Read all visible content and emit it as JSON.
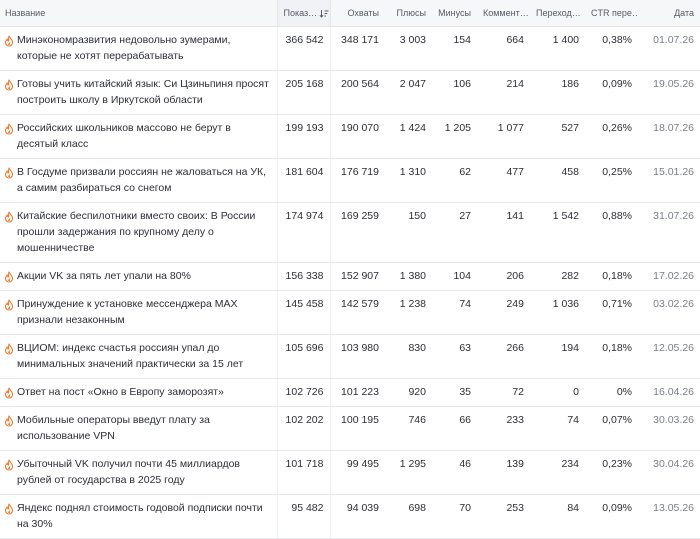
{
  "table": {
    "columns": [
      "Название",
      "Показ…",
      "Охваты",
      "Плюсы",
      "Минусы",
      "Коммент…",
      "Переход…",
      "CTR пере…",
      "Дата"
    ],
    "rows": [
      [
        "Минэкономразвития недовольно зумерами, которые не хотят перерабатывать",
        "366 542",
        "348 171",
        "3 003",
        "154",
        "664",
        "1 400",
        "0,38%",
        "01.07.26"
      ],
      [
        "Готовы учить китайский язык: Си Цзиньпиня просят построить школу в Иркутской области",
        "205 168",
        "200 564",
        "2 047",
        "106",
        "214",
        "186",
        "0,09%",
        "19.05.26"
      ],
      [
        "Российских школьников массово не берут в десятый класс",
        "199 193",
        "190 070",
        "1 424",
        "1 205",
        "1 077",
        "527",
        "0,26%",
        "18.07.26"
      ],
      [
        "В Госдуме призвали россиян не жаловаться на УК, а самим разбираться со снегом",
        "181 604",
        "176 719",
        "1 310",
        "62",
        "477",
        "458",
        "0,25%",
        "15.01.26"
      ],
      [
        "Китайские беспилотники вместо своих: В России прошли задержания по крупному делу о мошенничестве",
        "174 974",
        "169 259",
        "150",
        "27",
        "141",
        "1 542",
        "0,88%",
        "31.07.26"
      ],
      [
        "Акции VK за пять лет упали на 80%",
        "156 338",
        "152 907",
        "1 380",
        "104",
        "206",
        "282",
        "0,18%",
        "17.02.26"
      ],
      [
        "Принуждение к установке мессенджера MAX признали незаконным",
        "145 458",
        "142 579",
        "1 238",
        "74",
        "249",
        "1 036",
        "0,71%",
        "03.02.26"
      ],
      [
        "ВЦИОМ: индекс счастья россиян упал до минимальных значений практически за 15 лет",
        "105 696",
        "103 980",
        "830",
        "63",
        "266",
        "194",
        "0,18%",
        "12.05.26"
      ],
      [
        "Ответ на пост «Окно в Европу заморозят»",
        "102 726",
        "101 223",
        "920",
        "35",
        "72",
        "0",
        "0%",
        "16.04.26"
      ],
      [
        "Мобильные операторы введут плату за использование VPN",
        "102 202",
        "100 195",
        "746",
        "66",
        "233",
        "74",
        "0,07%",
        "30.03.26"
      ],
      [
        "Убыточный VK получил почти 45 миллиардов рублей от государства в 2025 году",
        "101 718",
        "99 495",
        "1 295",
        "46",
        "139",
        "234",
        "0,23%",
        "30.04.26"
      ],
      [
        "Яндекс поднял стоимость годовой подписки почти на 30%",
        "95 482",
        "94 039",
        "698",
        "70",
        "253",
        "84",
        "0,09%",
        "13.05.26"
      ]
    ]
  }
}
